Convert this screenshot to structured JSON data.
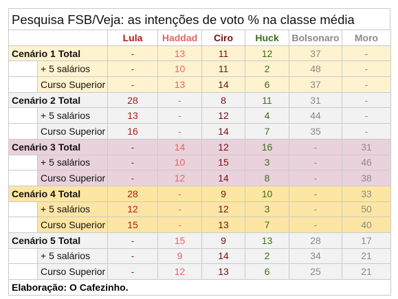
{
  "title": "Pesquisa FSB/Veja: as intenções de voto % na classe média",
  "columns": [
    "Lula",
    "Haddad",
    "Ciro",
    "Huck",
    "Bolsonaro",
    "Moro"
  ],
  "rows": [
    {
      "label": "Cenário 1 Total",
      "values": [
        "-",
        "13",
        "11",
        "12",
        "37",
        "-"
      ]
    },
    {
      "label": "+ 5 salários",
      "values": [
        "-",
        "10",
        "11",
        "2",
        "48",
        "-"
      ]
    },
    {
      "label": "Curso Superior",
      "values": [
        "-",
        "13",
        "14",
        "6",
        "37",
        "-"
      ]
    },
    {
      "label": "Cenário 2 Total",
      "values": [
        "28",
        "-",
        "8",
        "11",
        "31",
        "-"
      ]
    },
    {
      "label": "+ 5 salários",
      "values": [
        "13",
        "-",
        "12",
        "4",
        "44",
        "-"
      ]
    },
    {
      "label": "Curso Superior",
      "values": [
        "16",
        "-",
        "14",
        "7",
        "35",
        "-"
      ]
    },
    {
      "label": "Cenário 3 Total",
      "values": [
        "-",
        "14",
        "12",
        "16",
        "-",
        "31"
      ]
    },
    {
      "label": "+ 5 salários",
      "values": [
        "-",
        "10",
        "15",
        "3",
        "-",
        "46"
      ]
    },
    {
      "label": "Curso Superior",
      "values": [
        "-",
        "12",
        "14",
        "8",
        "-",
        "38"
      ]
    },
    {
      "label": "Cenário 4 Total",
      "values": [
        "28",
        "-",
        "9",
        "10",
        "-",
        "33"
      ]
    },
    {
      "label": "+ 5 salários",
      "values": [
        "12",
        "-",
        "12",
        "3",
        "-",
        "50"
      ]
    },
    {
      "label": "Curso Superior",
      "values": [
        "15",
        "-",
        "13",
        "7",
        "-",
        "40"
      ]
    },
    {
      "label": "Cenário 5 Total",
      "values": [
        "-",
        "15",
        "9",
        "13",
        "28",
        "17"
      ]
    },
    {
      "label": "+ 5 salários",
      "values": [
        "-",
        "9",
        "14",
        "2",
        "34",
        "21"
      ]
    },
    {
      "label": "Curso Superior",
      "values": [
        "-",
        "12",
        "13",
        "6",
        "25",
        "21"
      ]
    }
  ],
  "footer": "Elaboração: O Cafezinho.",
  "colors": {
    "lula": "#b01919",
    "haddad": "#e06666",
    "ciro": "#7a1010",
    "huck": "#3c6e1e",
    "bolsonaro": "#8a8a8a",
    "moro": "#8a8a8a",
    "scenario_1": "#fff3cf",
    "scenario_2": "#f2f2f2",
    "scenario_3": "#ead2dc",
    "scenario_4": "#fde6a3",
    "scenario_5": "#f2f2f2"
  }
}
